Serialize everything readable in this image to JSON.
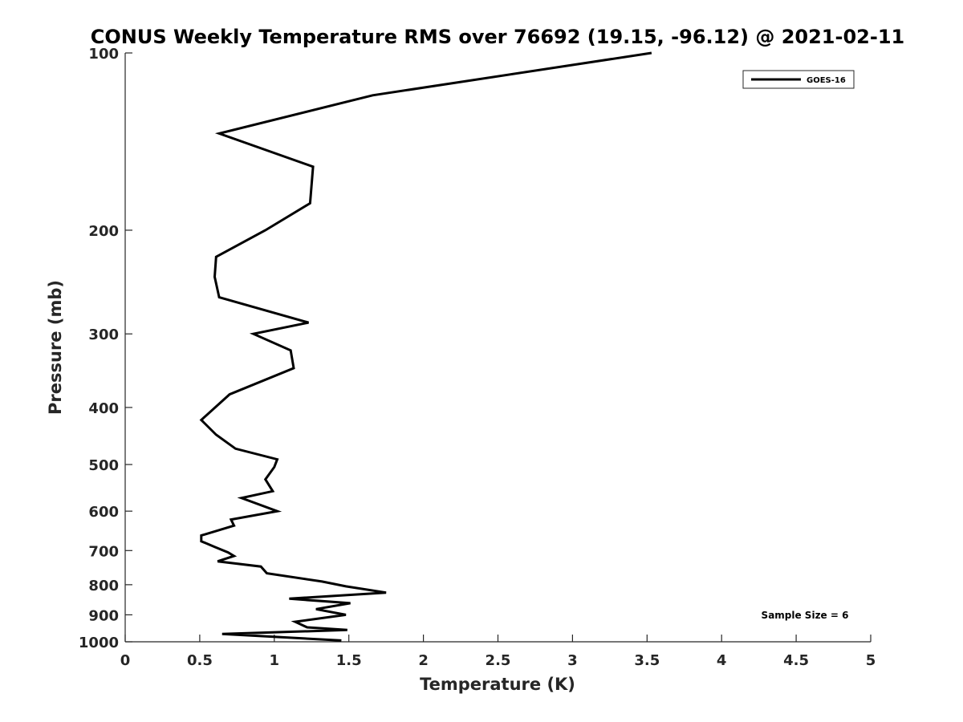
{
  "chart_data": {
    "type": "line",
    "title": "CONUS Weekly Temperature RMS over 76692 (19.15, -96.12) @ 2021-02-11",
    "xlabel": "Temperature (K)",
    "ylabel": "Pressure (mb)",
    "xlim": [
      0,
      5
    ],
    "ylim": [
      1000,
      100
    ],
    "yscale": "log",
    "y_reversed": true,
    "grid": false,
    "x_ticks": [
      0,
      0.5,
      1,
      1.5,
      2,
      2.5,
      3,
      3.5,
      4,
      4.5,
      5
    ],
    "x_tick_labels": [
      "0",
      "0.5",
      "1",
      "1.5",
      "2",
      "2.5",
      "3",
      "3.5",
      "4",
      "4.5",
      "5"
    ],
    "y_ticks": [
      100,
      200,
      300,
      400,
      500,
      600,
      700,
      800,
      900,
      1000
    ],
    "y_tick_labels": [
      "100",
      "200",
      "300",
      "400",
      "500",
      "600",
      "700",
      "800",
      "900",
      "1000"
    ],
    "legend_position": "top-right",
    "annotation": "Sample Size = 6",
    "series": [
      {
        "name": "GOES-16",
        "color": "#000000",
        "points": [
          [
            3.53,
            100
          ],
          [
            1.66,
            118
          ],
          [
            0.63,
            137
          ],
          [
            1.26,
            156
          ],
          [
            1.24,
            180
          ],
          [
            0.94,
            200
          ],
          [
            0.61,
            222
          ],
          [
            0.6,
            240
          ],
          [
            0.63,
            260
          ],
          [
            1.23,
            287
          ],
          [
            0.86,
            300
          ],
          [
            1.11,
            320
          ],
          [
            1.13,
            343
          ],
          [
            0.7,
            380
          ],
          [
            0.51,
            420
          ],
          [
            0.61,
            445
          ],
          [
            0.74,
            470
          ],
          [
            1.02,
            490
          ],
          [
            1.0,
            505
          ],
          [
            0.94,
            530
          ],
          [
            0.99,
            555
          ],
          [
            0.78,
            570
          ],
          [
            1.02,
            600
          ],
          [
            0.71,
            620
          ],
          [
            0.73,
            635
          ],
          [
            0.51,
            660
          ],
          [
            0.51,
            675
          ],
          [
            0.6,
            690
          ],
          [
            0.69,
            705
          ],
          [
            0.73,
            715
          ],
          [
            0.62,
            730
          ],
          [
            0.91,
            745
          ],
          [
            0.95,
            765
          ],
          [
            1.32,
            790
          ],
          [
            1.48,
            805
          ],
          [
            1.75,
            825
          ],
          [
            1.1,
            845
          ],
          [
            1.51,
            860
          ],
          [
            1.28,
            880
          ],
          [
            1.48,
            900
          ],
          [
            1.14,
            925
          ],
          [
            1.22,
            945
          ],
          [
            1.49,
            955
          ],
          [
            0.65,
            970
          ],
          [
            1.45,
            995
          ]
        ]
      }
    ]
  }
}
